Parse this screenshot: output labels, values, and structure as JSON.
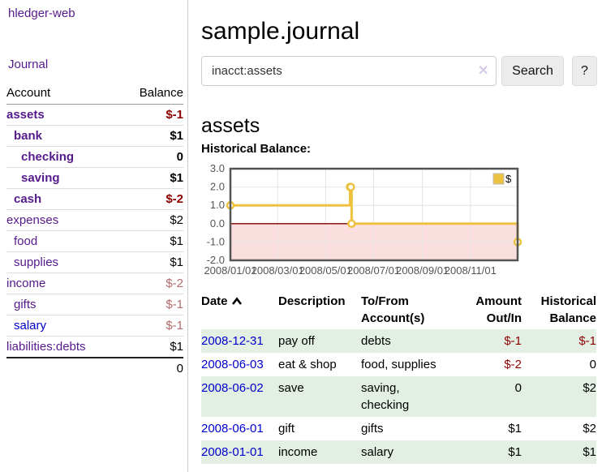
{
  "sidebar": {
    "app_title": "hledger-web",
    "journal_link": "Journal",
    "accounts": {
      "headers": [
        "Account",
        "Balance"
      ],
      "rows": [
        {
          "account": "assets",
          "balance": "$-1",
          "level": 0,
          "bold": true,
          "balance_class": "neg",
          "link_class": ""
        },
        {
          "account": "bank",
          "balance": "$1",
          "level": 1,
          "bold": true,
          "balance_class": "",
          "link_class": ""
        },
        {
          "account": "checking",
          "balance": "0",
          "level": 2,
          "bold": true,
          "balance_class": "",
          "link_class": ""
        },
        {
          "account": "saving",
          "balance": "$1",
          "level": 2,
          "bold": true,
          "balance_class": "",
          "link_class": ""
        },
        {
          "account": "cash",
          "balance": "$-2",
          "level": 1,
          "bold": true,
          "balance_class": "neg",
          "link_class": ""
        },
        {
          "account": "expenses",
          "balance": "$2",
          "level": 0,
          "bold": false,
          "balance_class": "",
          "link_class": ""
        },
        {
          "account": "food",
          "balance": "$1",
          "level": 1,
          "bold": false,
          "balance_class": "",
          "link_class": ""
        },
        {
          "account": "supplies",
          "balance": "$1",
          "level": 1,
          "bold": false,
          "balance_class": "",
          "link_class": ""
        },
        {
          "account": "income",
          "balance": "$-2",
          "level": 0,
          "bold": false,
          "balance_class": "dimneg",
          "link_class": ""
        },
        {
          "account": "gifts",
          "balance": "$-1",
          "level": 1,
          "bold": false,
          "balance_class": "dimneg",
          "link_class": ""
        },
        {
          "account": "salary",
          "balance": "$-1",
          "level": 1,
          "bold": false,
          "balance_class": "dimneg",
          "link_class": "blue"
        },
        {
          "account": "liabilities:debts",
          "balance": "$1",
          "level": 0,
          "bold": false,
          "balance_class": "",
          "link_class": ""
        }
      ],
      "total": "0"
    }
  },
  "header": {
    "title": "sample.journal",
    "search": {
      "value": "inacct:assets",
      "clear_icon": "✕",
      "search_button": "Search",
      "help_button": "?"
    }
  },
  "main": {
    "account_heading": "assets",
    "chart_label": "Historical Balance:"
  },
  "chart_data": {
    "type": "line",
    "step": true,
    "title": "Historical Balance",
    "series": [
      {
        "name": "$",
        "color": "#edc240",
        "points": [
          [
            "2008-01-01",
            1
          ],
          [
            "2008-06-01",
            2
          ],
          [
            "2008-06-02",
            2
          ],
          [
            "2008-06-03",
            0
          ],
          [
            "2008-12-31",
            -1
          ]
        ]
      }
    ],
    "x_start": "2008-01-01",
    "x_end": "2008-12-31",
    "x_ticks": [
      "2008/01/01",
      "2008/03/01",
      "2008/05/01",
      "2008/07/01",
      "2008/09/01",
      "2008/11/01"
    ],
    "y_ticks": [
      3.0,
      2.0,
      1.0,
      0.0,
      -1.0,
      -2.0
    ],
    "ylim": [
      -2,
      3
    ],
    "grid": true,
    "negative_region_color": "#fbdfdf",
    "zero_line_color": "#800000",
    "border_color": "#545454",
    "tick_color": "#545454",
    "legend": {
      "label": "$",
      "position": "top-right"
    }
  },
  "transactions": {
    "headers": [
      "Date",
      "Description",
      "To/From Account(s)",
      "Amount Out/In",
      "Historical Balance"
    ],
    "rows": [
      {
        "date": "2008-12-31",
        "description": "pay off",
        "accounts": "debts",
        "amount": "$-1",
        "balance": "$-1",
        "amount_class": "neg",
        "balance_class": "neg"
      },
      {
        "date": "2008-06-03",
        "description": "eat & shop",
        "accounts": "food, supplies",
        "amount": "$-2",
        "balance": "0",
        "amount_class": "neg",
        "balance_class": ""
      },
      {
        "date": "2008-06-02",
        "description": "save",
        "accounts": "saving, checking",
        "amount": "0",
        "balance": "$2",
        "amount_class": "",
        "balance_class": ""
      },
      {
        "date": "2008-06-01",
        "description": "gift",
        "accounts": "gifts",
        "amount": "$1",
        "balance": "$2",
        "amount_class": "",
        "balance_class": ""
      },
      {
        "date": "2008-01-01",
        "description": "income",
        "accounts": "salary",
        "amount": "$1",
        "balance": "$1",
        "amount_class": "",
        "balance_class": ""
      }
    ]
  }
}
